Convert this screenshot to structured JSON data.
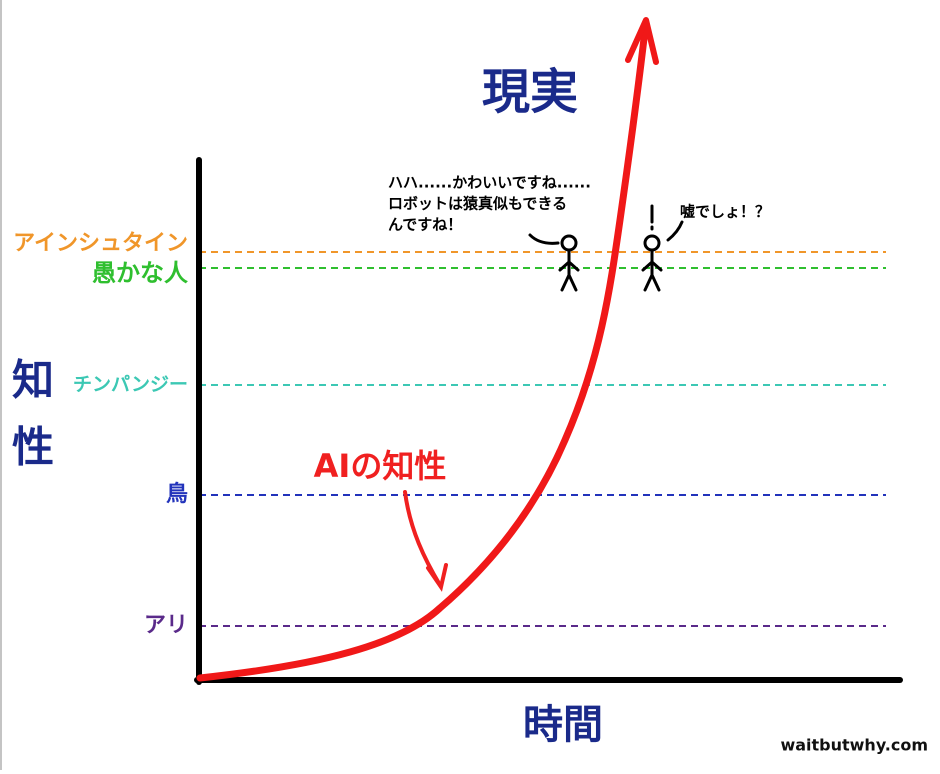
{
  "title": "現実",
  "y_label": [
    "知",
    "性"
  ],
  "x_label": "時間",
  "levels": [
    {
      "label": "アインシュタイン",
      "color": "#f0962a"
    },
    {
      "label": "愚かな人",
      "color": "#2fbf2f"
    },
    {
      "label": "チンパンジー",
      "color": "#3cc8b4"
    },
    {
      "label": "鳥",
      "color": "#2233bb"
    },
    {
      "label": "アリ",
      "color": "#5a2a8a"
    }
  ],
  "curve_label": "AIの知性",
  "speech_left": [
    "ハハ......かわいいですね......",
    "ロボットは猿真似もできる",
    "んですね！"
  ],
  "speech_right": "嘘でしょ！？",
  "credit": "waitbutwhy.com"
}
